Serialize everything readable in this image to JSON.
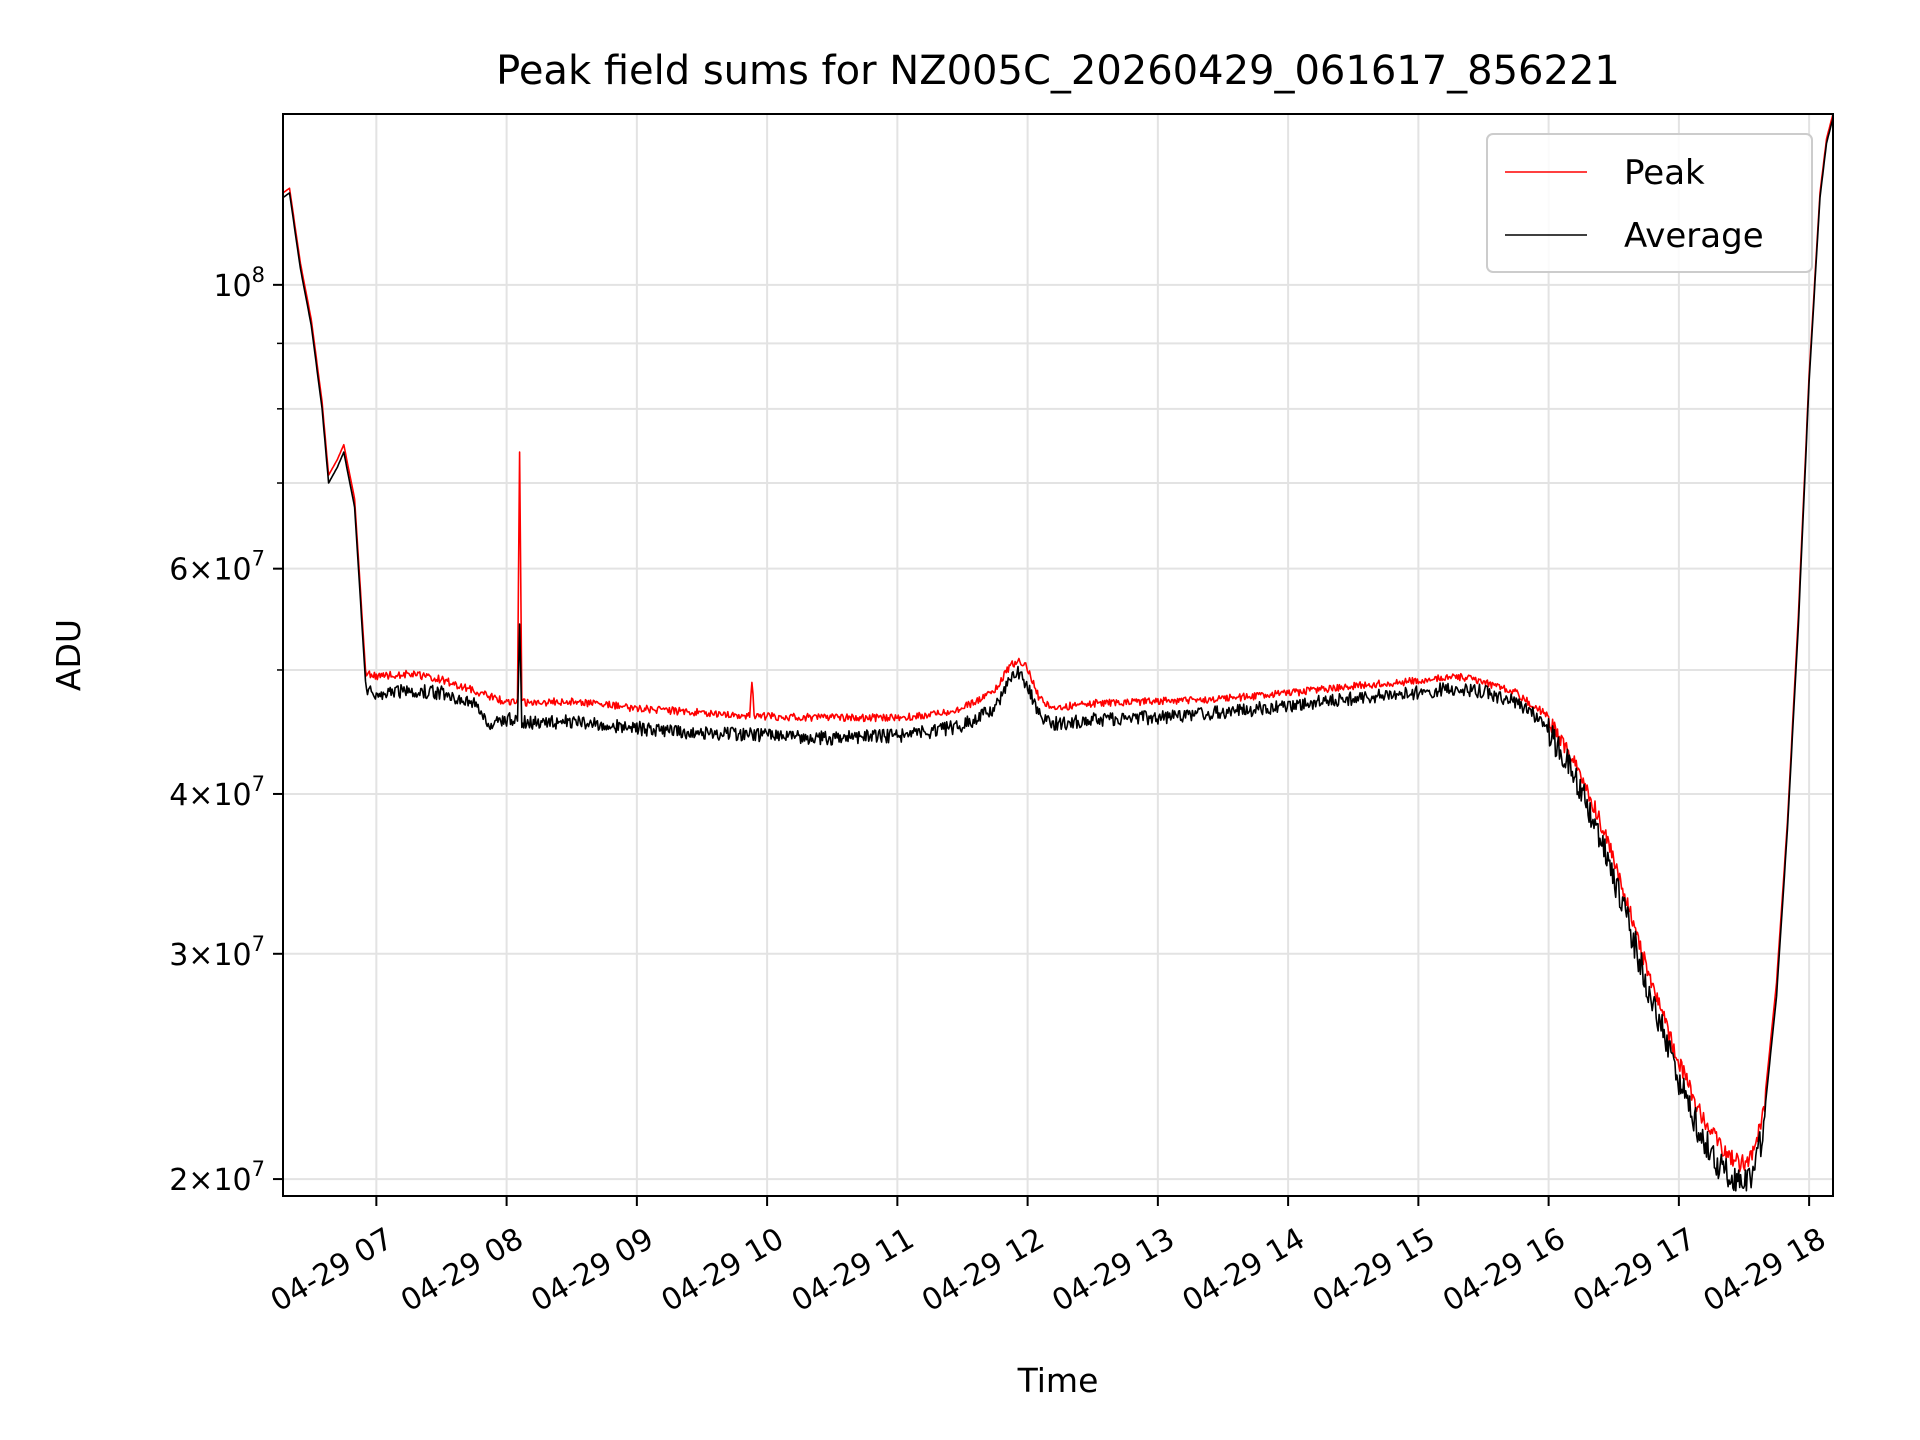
{
  "chart_data": {
    "type": "line",
    "title": "Peak field sums for NZ005C_20260429_061617_856221",
    "xlabel": "Time",
    "ylabel": "ADU",
    "yscale": "log",
    "grid": true,
    "legend_position": "top-right",
    "xlim": [
      "04-29 06:17",
      "04-29 18:11"
    ],
    "ylim": [
      19400000,
      136000000
    ],
    "x_ticks": [
      "04-29 07",
      "04-29 08",
      "04-29 09",
      "04-29 10",
      "04-29 11",
      "04-29 12",
      "04-29 13",
      "04-29 14",
      "04-29 15",
      "04-29 16",
      "04-29 17",
      "04-29 18"
    ],
    "y_ticks": [
      {
        "value": 20000000,
        "mantissa": "2",
        "exponent": "7"
      },
      {
        "value": 30000000,
        "mantissa": "3",
        "exponent": "7"
      },
      {
        "value": 40000000,
        "mantissa": "4",
        "exponent": "7"
      },
      {
        "value": 60000000,
        "mantissa": "6",
        "exponent": "7"
      },
      {
        "value": 100000000,
        "mantissa": "",
        "exponent": "8"
      }
    ],
    "series": [
      {
        "name": "Peak",
        "color": "#ff0000",
        "x": [
          "04-29 06:17",
          "04-29 06:20",
          "04-29 06:25",
          "04-29 06:30",
          "04-29 06:35",
          "04-29 06:38",
          "04-29 06:42",
          "04-29 06:45",
          "04-29 06:50",
          "04-29 06:55",
          "04-29 07:00",
          "04-29 07:15",
          "04-29 07:30",
          "04-29 07:45",
          "04-29 08:00",
          "04-29 08:05",
          "04-29 08:06",
          "04-29 08:07",
          "04-29 08:15",
          "04-29 08:30",
          "04-29 08:45",
          "04-29 09:00",
          "04-29 09:30",
          "04-29 09:52",
          "04-29 09:53",
          "04-29 09:54",
          "04-29 10:00",
          "04-29 10:30",
          "04-29 11:00",
          "04-29 11:15",
          "04-29 11:30",
          "04-29 11:45",
          "04-29 11:52",
          "04-29 11:56",
          "04-29 12:00",
          "04-29 12:05",
          "04-29 12:10",
          "04-29 12:15",
          "04-29 12:20",
          "04-29 12:30",
          "04-29 13:00",
          "04-29 13:30",
          "04-29 14:00",
          "04-29 14:30",
          "04-29 15:00",
          "04-29 15:10",
          "04-29 15:20",
          "04-29 15:30",
          "04-29 15:45",
          "04-29 16:00",
          "04-29 16:15",
          "04-29 16:30",
          "04-29 16:45",
          "04-29 17:00",
          "04-29 17:10",
          "04-29 17:20",
          "04-29 17:28",
          "04-29 17:32",
          "04-29 17:35",
          "04-29 17:40",
          "04-29 17:45",
          "04-29 17:50",
          "04-29 17:55",
          "04-29 18:00",
          "04-29 18:05",
          "04-29 18:08",
          "04-29 18:11"
        ],
        "y": [
          118000000,
          119000000,
          104000000,
          94000000,
          81000000,
          71000000,
          73000000,
          75000000,
          68000000,
          50000000,
          49800000,
          50000000,
          49500000,
          48500000,
          47500000,
          47500000,
          74000000,
          47500000,
          47500000,
          47600000,
          47300000,
          47000000,
          46600000,
          46400000,
          49500000,
          46400000,
          46300000,
          46200000,
          46200000,
          46400000,
          47000000,
          48500000,
          50800000,
          51200000,
          50500000,
          48000000,
          47200000,
          47100000,
          47200000,
          47400000,
          47600000,
          47800000,
          48300000,
          48900000,
          49400000,
          49600000,
          49700000,
          49300000,
          48300000,
          46300000,
          42200000,
          36200000,
          29800000,
          25100000,
          22800000,
          21400000,
          20900000,
          21000000,
          21300000,
          23500000,
          28500000,
          38000000,
          55000000,
          85000000,
          118000000,
          130000000,
          136000000
        ]
      },
      {
        "name": "Average",
        "color": "#000000",
        "x": [
          "04-29 06:17",
          "04-29 06:20",
          "04-29 06:25",
          "04-29 06:30",
          "04-29 06:35",
          "04-29 06:38",
          "04-29 06:42",
          "04-29 06:45",
          "04-29 06:50",
          "04-29 06:55",
          "04-29 07:00",
          "04-29 07:15",
          "04-29 07:30",
          "04-29 07:45",
          "04-29 07:52",
          "04-29 08:00",
          "04-29 08:05",
          "04-29 08:06",
          "04-29 08:07",
          "04-29 08:15",
          "04-29 08:30",
          "04-29 08:45",
          "04-29 09:00",
          "04-29 09:30",
          "04-29 10:00",
          "04-29 10:30",
          "04-29 11:00",
          "04-29 11:15",
          "04-29 11:30",
          "04-29 11:45",
          "04-29 11:52",
          "04-29 11:56",
          "04-29 12:00",
          "04-29 12:05",
          "04-29 12:10",
          "04-29 12:15",
          "04-29 12:20",
          "04-29 12:30",
          "04-29 13:00",
          "04-29 13:30",
          "04-29 14:00",
          "04-29 14:30",
          "04-29 15:00",
          "04-29 15:10",
          "04-29 15:20",
          "04-29 15:30",
          "04-29 15:45",
          "04-29 16:00",
          "04-29 16:15",
          "04-29 16:30",
          "04-29 16:45",
          "04-29 17:00",
          "04-29 17:10",
          "04-29 17:20",
          "04-29 17:28",
          "04-29 17:32",
          "04-29 17:35",
          "04-29 17:40",
          "04-29 17:45",
          "04-29 17:50",
          "04-29 17:55",
          "04-29 18:00",
          "04-29 18:05",
          "04-29 18:08",
          "04-29 18:11"
        ],
        "y": [
          117000000,
          118000000,
          103000000,
          93000000,
          80000000,
          70000000,
          72000000,
          74000000,
          67000000,
          49000000,
          48500000,
          48800000,
          48600000,
          47800000,
          45800000,
          46300000,
          46500000,
          55000000,
          46200000,
          46000000,
          46200000,
          45800000,
          45600000,
          45200000,
          45000000,
          44800000,
          45000000,
          45300000,
          45800000,
          47200000,
          49800000,
          50400000,
          49300000,
          46800000,
          46000000,
          46000000,
          46100000,
          46300000,
          46500000,
          46900000,
          47500000,
          48100000,
          48600000,
          48900000,
          49000000,
          48700000,
          47800000,
          45800000,
          41700000,
          35500000,
          29300000,
          24600000,
          22300000,
          20900000,
          20500000,
          20600000,
          20900000,
          23000000,
          27800000,
          37500000,
          54000000,
          84000000,
          117000000,
          129000000,
          135000000
        ]
      }
    ]
  }
}
